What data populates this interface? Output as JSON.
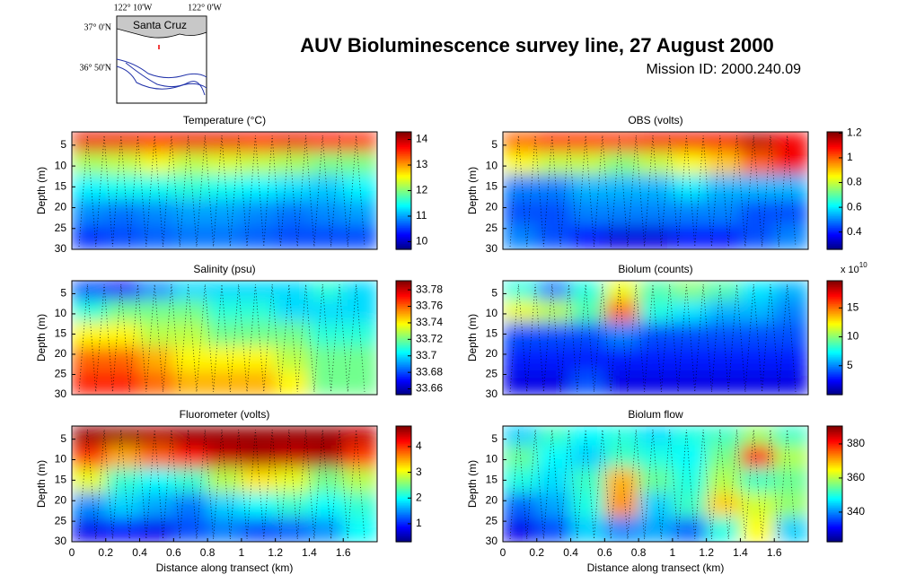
{
  "header": {
    "title": "AUV Bioluminescence survey line, 27 August 2000",
    "subtitle": "Mission ID: 2000.240.09"
  },
  "map_inset": {
    "lon_labels": [
      "122° 10'W",
      "122° 0'W"
    ],
    "lat_labels": [
      "37° 0'N",
      "36° 50'N"
    ],
    "place": "Santa Cruz"
  },
  "chart_data": [
    {
      "type": "heatmap",
      "title": "Temperature (°C)",
      "ylabel": "Depth (m)",
      "colormap": "jet",
      "xlim": [
        0,
        1.8
      ],
      "ylim": [
        30,
        1.8
      ],
      "yticks": [
        5,
        10,
        15,
        20,
        25,
        30
      ],
      "clim": [
        9.7,
        14.3
      ],
      "cticks": [
        10,
        11,
        12,
        13,
        14
      ],
      "x": [
        0.1,
        0.3,
        0.5,
        0.7,
        0.9,
        1.1,
        1.3,
        1.5,
        1.7
      ],
      "y": [
        4,
        9,
        15,
        21,
        27
      ],
      "values": [
        [
          13.8,
          13.8,
          13.7,
          13.8,
          13.8,
          13.7,
          13.8,
          13.7,
          13.6
        ],
        [
          12.2,
          12.3,
          12.5,
          12.3,
          12.4,
          12.3,
          12.2,
          12.0,
          12.0
        ],
        [
          11.4,
          11.5,
          11.5,
          11.6,
          11.5,
          11.4,
          11.3,
          11.2,
          11.4
        ],
        [
          10.9,
          10.8,
          10.9,
          11.0,
          11.0,
          10.9,
          10.8,
          10.9,
          11.0
        ],
        [
          10.5,
          10.6,
          10.7,
          10.8,
          10.8,
          10.7,
          10.6,
          10.6,
          10.6
        ]
      ]
    },
    {
      "type": "heatmap",
      "title": "OBS (volts)",
      "ylabel": "Depth (m)",
      "colormap": "jet",
      "xlim": [
        0,
        1.8
      ],
      "ylim": [
        30,
        1.8
      ],
      "yticks": [
        5,
        10,
        15,
        20,
        25,
        30
      ],
      "clim": [
        0.26,
        1.21
      ],
      "cticks": [
        0.4,
        0.6,
        0.8,
        1,
        1.2
      ],
      "x": [
        0.1,
        0.3,
        0.5,
        0.7,
        0.9,
        1.1,
        1.3,
        1.5,
        1.7
      ],
      "y": [
        4,
        9,
        15,
        21,
        27
      ],
      "values": [
        [
          1.0,
          1.05,
          1.05,
          1.05,
          1.1,
          1.1,
          1.1,
          1.15,
          1.1
        ],
        [
          0.85,
          0.8,
          0.8,
          0.75,
          0.8,
          0.85,
          0.9,
          1.0,
          1.1
        ],
        [
          0.5,
          0.5,
          0.55,
          0.55,
          0.55,
          0.6,
          0.55,
          0.55,
          0.55
        ],
        [
          0.45,
          0.45,
          0.5,
          0.5,
          0.5,
          0.5,
          0.5,
          0.45,
          0.45
        ],
        [
          0.5,
          0.45,
          0.4,
          0.35,
          0.35,
          0.4,
          0.4,
          0.45,
          0.5
        ]
      ]
    },
    {
      "type": "heatmap",
      "title": "Salinity (psu)",
      "ylabel": "Depth (m)",
      "colormap": "jet",
      "xlim": [
        0,
        1.8
      ],
      "ylim": [
        30,
        1.8
      ],
      "yticks": [
        5,
        10,
        15,
        20,
        25,
        30
      ],
      "clim": [
        33.653,
        33.791
      ],
      "cticks": [
        33.66,
        33.68,
        33.7,
        33.72,
        33.74,
        33.76,
        33.78
      ],
      "x": [
        0.1,
        0.3,
        0.5,
        0.7,
        0.9,
        1.1,
        1.3,
        1.5,
        1.7
      ],
      "y": [
        4,
        9,
        15,
        21,
        27
      ],
      "values": [
        [
          33.68,
          33.67,
          33.69,
          33.7,
          33.7,
          33.7,
          33.7,
          33.71,
          33.7
        ],
        [
          33.71,
          33.72,
          33.72,
          33.72,
          33.71,
          33.71,
          33.7,
          33.7,
          33.7
        ],
        [
          33.74,
          33.74,
          33.73,
          33.73,
          33.72,
          33.72,
          33.72,
          33.71,
          33.71
        ],
        [
          33.76,
          33.76,
          33.75,
          33.74,
          33.74,
          33.74,
          33.73,
          33.72,
          33.72
        ],
        [
          33.77,
          33.77,
          33.76,
          33.75,
          33.75,
          33.75,
          33.74,
          33.72,
          33.72
        ]
      ]
    },
    {
      "type": "heatmap",
      "title": "Biolum (counts)",
      "ylabel": "Depth (m)",
      "colormap": "jet",
      "xlim": [
        0,
        1.8
      ],
      "ylim": [
        30,
        1.8
      ],
      "yticks": [
        5,
        10,
        15,
        20,
        25,
        30
      ],
      "clim": [
        0,
        197000000000.0
      ],
      "cticks": [
        {
          "value": 50000000000.0,
          "label": "5"
        },
        {
          "value": 100000000000.0,
          "label": "10"
        },
        {
          "value": 150000000000.0,
          "label": "15"
        }
      ],
      "cmultiplier": {
        "label": "x 10",
        "exponent": "10"
      },
      "x": [
        0.1,
        0.3,
        0.5,
        0.7,
        0.9,
        1.1,
        1.3,
        1.5,
        1.7
      ],
      "y": [
        4,
        9,
        15,
        21,
        27
      ],
      "values": [
        [
          80000000000.0,
          50000000000.0,
          80000000000.0,
          120000000000.0,
          90000000000.0,
          100000000000.0,
          90000000000.0,
          70000000000.0,
          60000000000.0
        ],
        [
          120000000000.0,
          110000000000.0,
          90000000000.0,
          150000000000.0,
          80000000000.0,
          70000000000.0,
          60000000000.0,
          60000000000.0,
          50000000000.0
        ],
        [
          40000000000.0,
          40000000000.0,
          40000000000.0,
          50000000000.0,
          40000000000.0,
          40000000000.0,
          40000000000.0,
          40000000000.0,
          40000000000.0
        ],
        [
          30000000000.0,
          30000000000.0,
          30000000000.0,
          30000000000.0,
          30000000000.0,
          30000000000.0,
          30000000000.0,
          30000000000.0,
          30000000000.0
        ],
        [
          20000000000.0,
          20000000000.0,
          40000000000.0,
          20000000000.0,
          20000000000.0,
          20000000000.0,
          20000000000.0,
          20000000000.0,
          20000000000.0
        ]
      ]
    },
    {
      "type": "heatmap",
      "title": "Fluorometer (volts)",
      "ylabel": "Depth (m)",
      "xlabel": "Distance along transect (km)",
      "colormap": "jet",
      "xlim": [
        0,
        1.8
      ],
      "ylim": [
        30,
        1.8
      ],
      "xticks": [
        0,
        0.2,
        0.4,
        0.6,
        0.8,
        1,
        1.2,
        1.4,
        1.6
      ],
      "yticks": [
        5,
        10,
        15,
        20,
        25,
        30
      ],
      "clim": [
        0.3,
        4.8
      ],
      "cticks": [
        1,
        2,
        3,
        4
      ],
      "x": [
        0.1,
        0.3,
        0.5,
        0.7,
        0.9,
        1.1,
        1.3,
        1.5,
        1.7
      ],
      "y": [
        4,
        9,
        15,
        21,
        27
      ],
      "values": [
        [
          4.7,
          4.7,
          4.6,
          4.7,
          4.7,
          4.7,
          4.7,
          4.7,
          4.5
        ],
        [
          4.0,
          3.5,
          3.8,
          4.2,
          4.5,
          4.6,
          4.5,
          4.6,
          4.0
        ],
        [
          3.0,
          2.2,
          2.0,
          2.2,
          2.8,
          3.2,
          3.0,
          2.5,
          2.8
        ],
        [
          1.5,
          1.8,
          1.6,
          1.4,
          1.8,
          2.0,
          2.2,
          2.0,
          2.2
        ],
        [
          0.8,
          0.9,
          0.8,
          1.2,
          1.4,
          1.2,
          1.3,
          1.5,
          2.0
        ]
      ]
    },
    {
      "type": "heatmap",
      "title": "Biolum flow",
      "ylabel": "Depth (m)",
      "xlabel": "Distance along transect (km)",
      "colormap": "jet",
      "xlim": [
        0,
        1.8
      ],
      "ylim": [
        30,
        1.8
      ],
      "xticks": [
        0,
        0.2,
        0.4,
        0.6,
        0.8,
        1,
        1.2,
        1.4,
        1.6
      ],
      "yticks": [
        5,
        10,
        15,
        20,
        25,
        30
      ],
      "clim": [
        322.6,
        390.5
      ],
      "cticks": [
        340,
        360,
        380
      ],
      "x": [
        0.1,
        0.3,
        0.5,
        0.7,
        0.9,
        1.1,
        1.3,
        1.5,
        1.7
      ],
      "y": [
        4,
        9,
        15,
        21,
        27
      ],
      "values": [
        [
          345,
          352,
          348,
          350,
          346,
          350,
          352,
          358,
          352
        ],
        [
          355,
          348,
          345,
          352,
          350,
          348,
          356,
          380,
          360
        ],
        [
          350,
          346,
          352,
          370,
          355,
          350,
          360,
          352,
          355
        ],
        [
          338,
          342,
          350,
          372,
          345,
          352,
          368,
          362,
          358
        ],
        [
          330,
          336,
          345,
          340,
          342,
          338,
          350,
          365,
          345
        ]
      ]
    }
  ]
}
